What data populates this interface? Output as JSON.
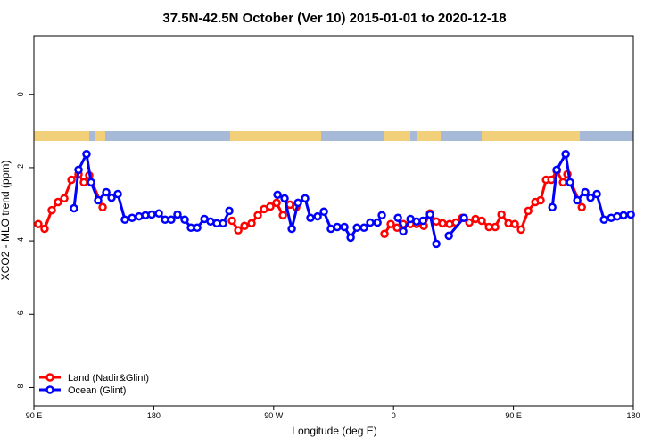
{
  "chart_data": {
    "type": "line",
    "title": "37.5N-42.5N October (Ver 10)   2015-01-01 to 2020-12-18",
    "x_label": "Longitude (deg E)",
    "y_label": "XCO2 - MLO trend (ppm)",
    "xlim": [
      90,
      540
    ],
    "ylim": [
      -8.5,
      1.6
    ],
    "xticks": [
      {
        "value": 90,
        "label": "90 E"
      },
      180,
      {
        "value": 270,
        "label": "90 W"
      },
      {
        "value": 360,
        "label": "0"
      },
      {
        "value": 450,
        "label": "90 E"
      },
      {
        "value": 540,
        "label": "180"
      }
    ],
    "yticks": [
      0,
      -2,
      -4,
      -6,
      -8
    ],
    "legend": "bottom-left",
    "series": [
      {
        "name": "Land (Nadir&Glint)",
        "color": "#ff0000",
        "x": [
          93.3,
          98.0,
          103.4,
          108.1,
          112.8,
          118.2,
          123.5,
          127.5,
          131.5,
          141.6,
          null,
          238.7,
          243.4,
          248.1,
          253.4,
          258.1,
          262.8,
          267.5,
          272.2,
          276.9,
          282.2,
          286.9,
          null,
          353.2,
          357.9,
          362.6,
          367.3,
          372.7,
          377.3,
          382.7,
          387.4,
          392.1,
          396.8,
          402.1,
          406.8,
          411.5,
          416.9,
          421.5,
          426.2,
          431.6,
          436.3,
          441.0,
          446.3,
          451.0,
          455.7,
          461.1,
          466.4,
          470.4,
          474.5,
          478.5,
          482.5,
          487.2,
          490.5,
          501.3
        ],
        "values": [
          -3.54,
          -3.67,
          -3.16,
          -2.94,
          -2.84,
          -2.33,
          -2.18,
          -2.4,
          -2.21,
          -3.08,
          null,
          -3.45,
          -3.71,
          -3.59,
          -3.52,
          -3.3,
          -3.13,
          -3.06,
          -2.96,
          -3.3,
          -3.01,
          -3.08,
          null,
          -3.81,
          -3.54,
          -3.64,
          -3.54,
          -3.54,
          -3.54,
          -3.59,
          -3.25,
          -3.47,
          -3.52,
          -3.54,
          -3.5,
          -3.37,
          -3.5,
          -3.4,
          -3.45,
          -3.62,
          -3.62,
          -3.28,
          -3.52,
          -3.54,
          -3.69,
          -3.18,
          -2.94,
          -2.89,
          -2.33,
          -2.33,
          -2.09,
          -2.4,
          -2.18,
          -3.08
        ]
      },
      {
        "name": "Ocean (Glint)",
        "color": "#0000ff",
        "x": [
          120.1,
          123.5,
          129.5,
          132.9,
          138.2,
          144.3,
          148.3,
          153.0,
          158.3,
          163.7,
          169.0,
          173.7,
          178.4,
          183.8,
          188.5,
          193.1,
          197.8,
          203.2,
          207.9,
          212.6,
          218.0,
          222.6,
          227.3,
          232.0,
          236.7,
          null,
          272.9,
          278.2,
          283.6,
          288.3,
          293.6,
          297.6,
          303.0,
          307.7,
          313.0,
          317.7,
          323.1,
          327.8,
          332.5,
          337.8,
          342.5,
          347.9,
          351.2,
          null,
          363.3,
          367.3,
          372.7,
          377.3,
          382.0,
          387.4,
          392.1,
          null,
          401.5,
          412.8,
          null,
          479.2,
          482.5,
          489.2,
          492.5,
          497.9,
          503.9,
          507.9,
          512.6,
          518.0,
          523.4,
          528.0,
          532.7,
          538.1
        ],
        "values": [
          -3.11,
          -2.06,
          -1.63,
          -2.4,
          -2.89,
          -2.67,
          -2.82,
          -2.72,
          -3.42,
          -3.37,
          -3.33,
          -3.3,
          -3.28,
          -3.25,
          -3.42,
          -3.42,
          -3.28,
          -3.42,
          -3.64,
          -3.64,
          -3.4,
          -3.47,
          -3.52,
          -3.52,
          -3.18,
          null,
          -2.74,
          -2.84,
          -3.67,
          -2.96,
          -2.84,
          -3.37,
          -3.33,
          -3.2,
          -3.67,
          -3.62,
          -3.62,
          -3.91,
          -3.64,
          -3.64,
          -3.5,
          -3.5,
          -3.3,
          null,
          -3.37,
          -3.74,
          -3.4,
          -3.47,
          -3.45,
          -3.28,
          -4.08,
          null,
          -3.86,
          -3.37,
          null,
          -3.08,
          -2.06,
          -1.63,
          -2.4,
          -2.89,
          -2.67,
          -2.82,
          -2.72,
          -3.42,
          -3.37,
          -3.33,
          -3.3,
          -3.28
        ]
      }
    ]
  }
}
